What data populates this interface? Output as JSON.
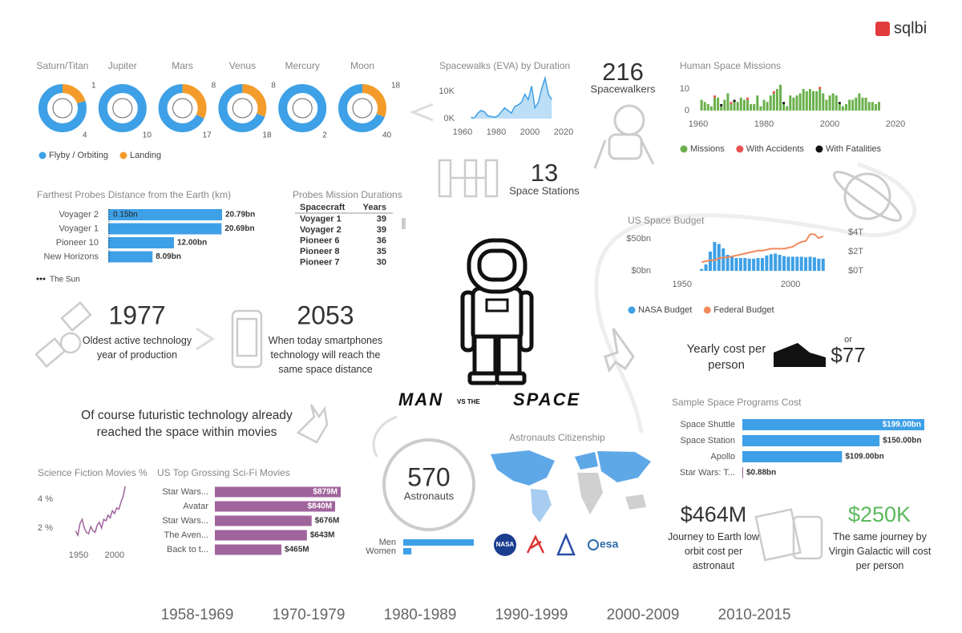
{
  "logo": "sqlbi",
  "title": {
    "man": "MAN",
    "vs": "VS THE",
    "space": "SPACE"
  },
  "quote": "Of course futuristic technology already reached the space within movies",
  "kpis": [
    {
      "value": 216,
      "label": "Spacewalkers"
    },
    {
      "value": 13,
      "label": "Space Stations"
    },
    {
      "value": 1977,
      "label": "Oldest active technology year of production"
    },
    {
      "value": 2053,
      "label": "When today smartphones technology will reach the same space distance"
    },
    {
      "value": 570,
      "label": "Astronauts"
    },
    {
      "value": "$464M",
      "label": "Journey to Earth low orbit cost per astronaut"
    },
    {
      "value": "$250K",
      "label": "The same journey by Virgin Galactic will cost per person"
    }
  ],
  "yearly_cost": {
    "label": "Yearly cost per person",
    "or": "or",
    "value": "$77"
  },
  "probe_table": {
    "title": "Probes Mission Durations",
    "columns": [
      "Spacecraft",
      "Years"
    ],
    "rows": [
      [
        "Voyager 1",
        39
      ],
      [
        "Voyager 2",
        39
      ],
      [
        "Pioneer 6",
        36
      ],
      [
        "Pioneer 8",
        35
      ],
      [
        "Pioneer 7",
        30
      ]
    ]
  },
  "map_title": "Astronauts Citizenship",
  "agency_logos": [
    "NASA",
    "esa"
  ],
  "timeline": [
    "1958-1969",
    "1970-1979",
    "1980-1989",
    "1990-1999",
    "2000-2009",
    "2010-2015"
  ],
  "chart_data": [
    {
      "type": "donut",
      "categories": [
        "Saturn/Titan",
        "Jupiter",
        "Mars",
        "Venus",
        "Mercury",
        "Moon"
      ],
      "series": [
        {
          "name": "Flyby / Orbiting",
          "color": "#3ea0e6",
          "values": [
            4,
            10,
            17,
            18,
            2,
            40
          ]
        },
        {
          "name": "Landing",
          "color": "#f39c2b",
          "values": [
            1,
            null,
            8,
            8,
            null,
            18
          ]
        }
      ]
    },
    {
      "type": "area",
      "title": "Spacewalks (EVA) by Duration",
      "x": [
        1965,
        1967,
        1969,
        1971,
        1973,
        1975,
        1977,
        1979,
        1981,
        1983,
        1985,
        1987,
        1989,
        1991,
        1993,
        1995,
        1997,
        1999,
        2001,
        2003,
        2005,
        2007,
        2009,
        2011,
        2013
      ],
      "values": [
        500,
        200,
        2000,
        3000,
        2500,
        1000,
        800,
        500,
        1000,
        2500,
        4000,
        3000,
        2000,
        4500,
        5000,
        6000,
        9000,
        7000,
        12000,
        4000,
        6000,
        11000,
        15000,
        9000,
        7000
      ],
      "color": "#3ea0e6",
      "xlim": [
        1960,
        2020
      ],
      "xticks": [
        1960,
        1980,
        2000,
        2020
      ],
      "ylim": [
        0,
        16000
      ],
      "yticks": [
        {
          "value": 0,
          "label": "0K"
        },
        {
          "value": 10000,
          "label": "10K"
        }
      ]
    },
    {
      "type": "stacked-bar",
      "title": "Human Space Missions",
      "x": [
        1961,
        1962,
        1963,
        1964,
        1965,
        1966,
        1967,
        1968,
        1969,
        1970,
        1971,
        1972,
        1973,
        1974,
        1975,
        1976,
        1977,
        1978,
        1979,
        1980,
        1981,
        1982,
        1983,
        1984,
        1985,
        1986,
        1987,
        1988,
        1989,
        1990,
        1991,
        1992,
        1993,
        1994,
        1995,
        1996,
        1997,
        1998,
        1999,
        2000,
        2001,
        2002,
        2003,
        2004,
        2005,
        2006,
        2007,
        2008,
        2009,
        2010,
        2011,
        2012,
        2013,
        2014,
        2015
      ],
      "series": [
        {
          "name": "Missions",
          "color": "#6ab04c",
          "values": [
            5,
            4,
            3,
            2,
            6,
            6,
            2,
            5,
            8,
            3,
            4,
            4,
            6,
            5,
            5,
            3,
            3,
            7,
            2,
            5,
            4,
            7,
            8,
            10,
            12,
            3,
            2,
            7,
            6,
            7,
            8,
            10,
            9,
            10,
            9,
            9,
            10,
            8,
            5,
            7,
            8,
            7,
            3,
            2,
            3,
            5,
            5,
            6,
            8,
            6,
            6,
            4,
            4,
            3,
            4
          ]
        },
        {
          "name": "With Accidents",
          "color": "#e8534f",
          "values": [
            0,
            0,
            0,
            0,
            1,
            0,
            0,
            0,
            0,
            1,
            0,
            0,
            0,
            0,
            1,
            0,
            0,
            0,
            0,
            0,
            0,
            0,
            1,
            0,
            0,
            0,
            0,
            0,
            0,
            0,
            0,
            0,
            0,
            0,
            0,
            0,
            1,
            0,
            0,
            0,
            0,
            0,
            0,
            0,
            0,
            0,
            0,
            0,
            0,
            0,
            0,
            0,
            0,
            0,
            0
          ]
        },
        {
          "name": "With Fatalities",
          "color": "#111111",
          "values": [
            0,
            0,
            0,
            0,
            0,
            0,
            1,
            0,
            0,
            0,
            1,
            0,
            0,
            0,
            0,
            0,
            0,
            0,
            0,
            0,
            0,
            0,
            0,
            0,
            0,
            1,
            0,
            0,
            0,
            0,
            0,
            0,
            0,
            0,
            0,
            0,
            0,
            0,
            0,
            0,
            0,
            0,
            1,
            0,
            0,
            0,
            0,
            0,
            0,
            0,
            0,
            0,
            0,
            0,
            0
          ]
        }
      ],
      "xlim": [
        1960,
        2020
      ],
      "xticks": [
        1960,
        1980,
        2000,
        2020
      ],
      "ylim": [
        0,
        13
      ],
      "yticks": [
        0,
        10
      ]
    },
    {
      "type": "hbar",
      "title": "Farthest Probes Distance from the Earth (km)",
      "categories": [
        "Voyager 2",
        "Voyager 1",
        "Pioneer 10",
        "New Horizons"
      ],
      "values": [
        20.79,
        20.69,
        12.0,
        8.09
      ],
      "value_labels": [
        "20.79bn",
        "20.69bn",
        "12.00bn",
        "8.09bn"
      ],
      "color": "#3ea0e6",
      "reference": {
        "name": "The Sun",
        "value": 0.15,
        "label": "0.15bn"
      }
    },
    {
      "type": "combo",
      "title": "US Space Budget",
      "x": [
        1959,
        1961,
        1963,
        1965,
        1967,
        1969,
        1971,
        1973,
        1975,
        1977,
        1979,
        1981,
        1983,
        1985,
        1987,
        1989,
        1991,
        1993,
        1995,
        1997,
        1999,
        2001,
        2003,
        2005,
        2007,
        2009,
        2011,
        2013,
        2015
      ],
      "series": [
        {
          "name": "NASA Budget",
          "color": "#3ea0e6",
          "values": [
            3,
            10,
            30,
            45,
            42,
            35,
            25,
            22,
            20,
            20,
            20,
            19,
            19,
            20,
            20,
            24,
            26,
            27,
            25,
            23,
            22,
            22,
            22,
            22,
            21,
            22,
            21,
            19,
            19
          ]
        },
        {
          "name": "Federal Budget",
          "color": "#f08a5d",
          "axis": "y2",
          "values": [
            0.9,
            1.0,
            1.1,
            1.1,
            1.3,
            1.4,
            1.4,
            1.5,
            1.6,
            1.7,
            1.8,
            1.9,
            2.0,
            2.1,
            2.1,
            2.2,
            2.3,
            2.3,
            2.3,
            2.3,
            2.4,
            2.5,
            2.8,
            3.0,
            3.1,
            3.8,
            3.8,
            3.4,
            3.6
          ]
        }
      ],
      "xlim": [
        1939,
        2021
      ],
      "xticks": [
        1950,
        2000
      ],
      "ylim": [
        0,
        60
      ],
      "yticks": [
        {
          "value": 0,
          "label": "$0bn"
        },
        {
          "value": 50,
          "label": "$50bn"
        }
      ],
      "y2lim": [
        0,
        4
      ],
      "y2ticks": [
        {
          "value": 0,
          "label": "$0T"
        },
        {
          "value": 2,
          "label": "$2T"
        },
        {
          "value": 4,
          "label": "$4T"
        }
      ]
    },
    {
      "type": "hbar",
      "title": "Sample Space Programs Cost",
      "categories": [
        "Space Shuttle",
        "Space Station",
        "Apollo",
        "Star Wars: T..."
      ],
      "values": [
        199,
        150,
        109,
        0.88
      ],
      "value_labels": [
        "$199.00bn",
        "$150.00bn",
        "$109.00bn",
        "$0.88bn"
      ],
      "colors": [
        "#3ea0e6",
        "#3ea0e6",
        "#3ea0e6",
        "#a0649c"
      ]
    },
    {
      "type": "line",
      "title": "Science Fiction Movies %",
      "x": [
        1946,
        1949,
        1952,
        1955,
        1958,
        1961,
        1964,
        1967,
        1970,
        1973,
        1976,
        1979,
        1982,
        1985,
        1988,
        1991,
        1994,
        1997,
        2000,
        2003,
        2006,
        2009,
        2012,
        2015
      ],
      "values": [
        1.8,
        1.5,
        2.3,
        2.6,
        2.0,
        1.7,
        1.6,
        2.1,
        1.8,
        1.7,
        2.2,
        2.4,
        2.0,
        2.6,
        2.5,
        2.9,
        2.7,
        3.2,
        3.0,
        3.4,
        3.3,
        3.8,
        4.2,
        4.9
      ],
      "color": "#a0649c",
      "xlim": [
        1940,
        2018
      ],
      "xticks": [
        1950,
        2000
      ],
      "ylim": [
        1,
        5
      ],
      "yticks": [
        {
          "value": 2,
          "label": "2 %"
        },
        {
          "value": 4,
          "label": "4 %"
        }
      ]
    },
    {
      "type": "hbar",
      "title": "US Top Grossing Sci-Fi Movies",
      "categories": [
        "Star Wars...",
        "Avatar",
        "Star Wars...",
        "The Aven...",
        "Back to t..."
      ],
      "values": [
        879,
        840,
        676,
        643,
        465
      ],
      "value_labels": [
        "$879M",
        "$840M",
        "$676M",
        "$643M",
        "$465M"
      ],
      "color": "#a0649c"
    },
    {
      "type": "hbar",
      "categories": [
        "Men",
        "Women"
      ],
      "values": [
        511,
        59
      ],
      "color": "#3ea0e6"
    }
  ]
}
